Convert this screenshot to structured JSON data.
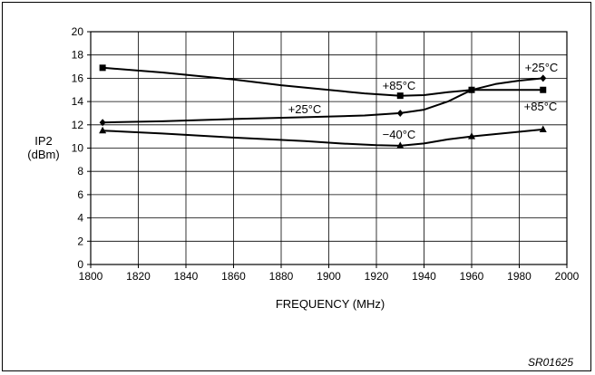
{
  "chart_data": {
    "type": "line",
    "title": "",
    "xlabel": "FREQUENCY (MHz)",
    "ylabel": [
      "IP2",
      "(dBm)"
    ],
    "xlim": [
      1800,
      2000
    ],
    "ylim": [
      0,
      20
    ],
    "x_ticks": [
      1800,
      1820,
      1840,
      1860,
      1880,
      1900,
      1920,
      1940,
      1960,
      1980,
      2000
    ],
    "y_ticks": [
      0,
      2,
      4,
      6,
      8,
      10,
      12,
      14,
      16,
      18,
      20
    ],
    "grid": true,
    "series": [
      {
        "name": "+85°C",
        "marker": "square",
        "points": [
          {
            "x": 1805,
            "y": 16.9
          },
          {
            "x": 1930,
            "y": 14.5
          },
          {
            "x": 1960,
            "y": 15.0
          },
          {
            "x": 1990,
            "y": 15.0
          }
        ],
        "curve": [
          [
            1805,
            16.9
          ],
          [
            1830,
            16.5
          ],
          [
            1860,
            15.9
          ],
          [
            1880,
            15.4
          ],
          [
            1900,
            15.0
          ],
          [
            1915,
            14.7
          ],
          [
            1930,
            14.5
          ],
          [
            1940,
            14.55
          ],
          [
            1950,
            14.8
          ],
          [
            1960,
            15.0
          ],
          [
            1975,
            15.0
          ],
          [
            1990,
            15.0
          ]
        ]
      },
      {
        "name": "+25°C",
        "marker": "diamond",
        "points": [
          {
            "x": 1805,
            "y": 12.2
          },
          {
            "x": 1930,
            "y": 13.0
          },
          {
            "x": 1960,
            "y": 15.0
          },
          {
            "x": 1990,
            "y": 16.0
          }
        ],
        "curve": [
          [
            1805,
            12.2
          ],
          [
            1830,
            12.3
          ],
          [
            1860,
            12.5
          ],
          [
            1890,
            12.65
          ],
          [
            1915,
            12.8
          ],
          [
            1930,
            13.0
          ],
          [
            1940,
            13.3
          ],
          [
            1950,
            14.0
          ],
          [
            1960,
            15.0
          ],
          [
            1970,
            15.5
          ],
          [
            1980,
            15.8
          ],
          [
            1990,
            16.0
          ]
        ]
      },
      {
        "name": "−40°C",
        "marker": "triangle",
        "points": [
          {
            "x": 1805,
            "y": 11.5
          },
          {
            "x": 1930,
            "y": 10.2
          },
          {
            "x": 1960,
            "y": 11.0
          },
          {
            "x": 1990,
            "y": 11.6
          }
        ],
        "curve": [
          [
            1805,
            11.5
          ],
          [
            1830,
            11.25
          ],
          [
            1860,
            10.9
          ],
          [
            1890,
            10.6
          ],
          [
            1905,
            10.4
          ],
          [
            1920,
            10.25
          ],
          [
            1930,
            10.2
          ],
          [
            1940,
            10.4
          ],
          [
            1950,
            10.75
          ],
          [
            1960,
            11.0
          ],
          [
            1975,
            11.3
          ],
          [
            1990,
            11.6
          ]
        ]
      }
    ],
    "annotations": [
      "+85°C",
      "+25°C",
      "+25°C",
      "+85°C",
      "−40°C"
    ]
  },
  "figure_code": "SR01625",
  "colors": {
    "line": "#000000",
    "grid": "#000000",
    "background": "#ffffff"
  }
}
